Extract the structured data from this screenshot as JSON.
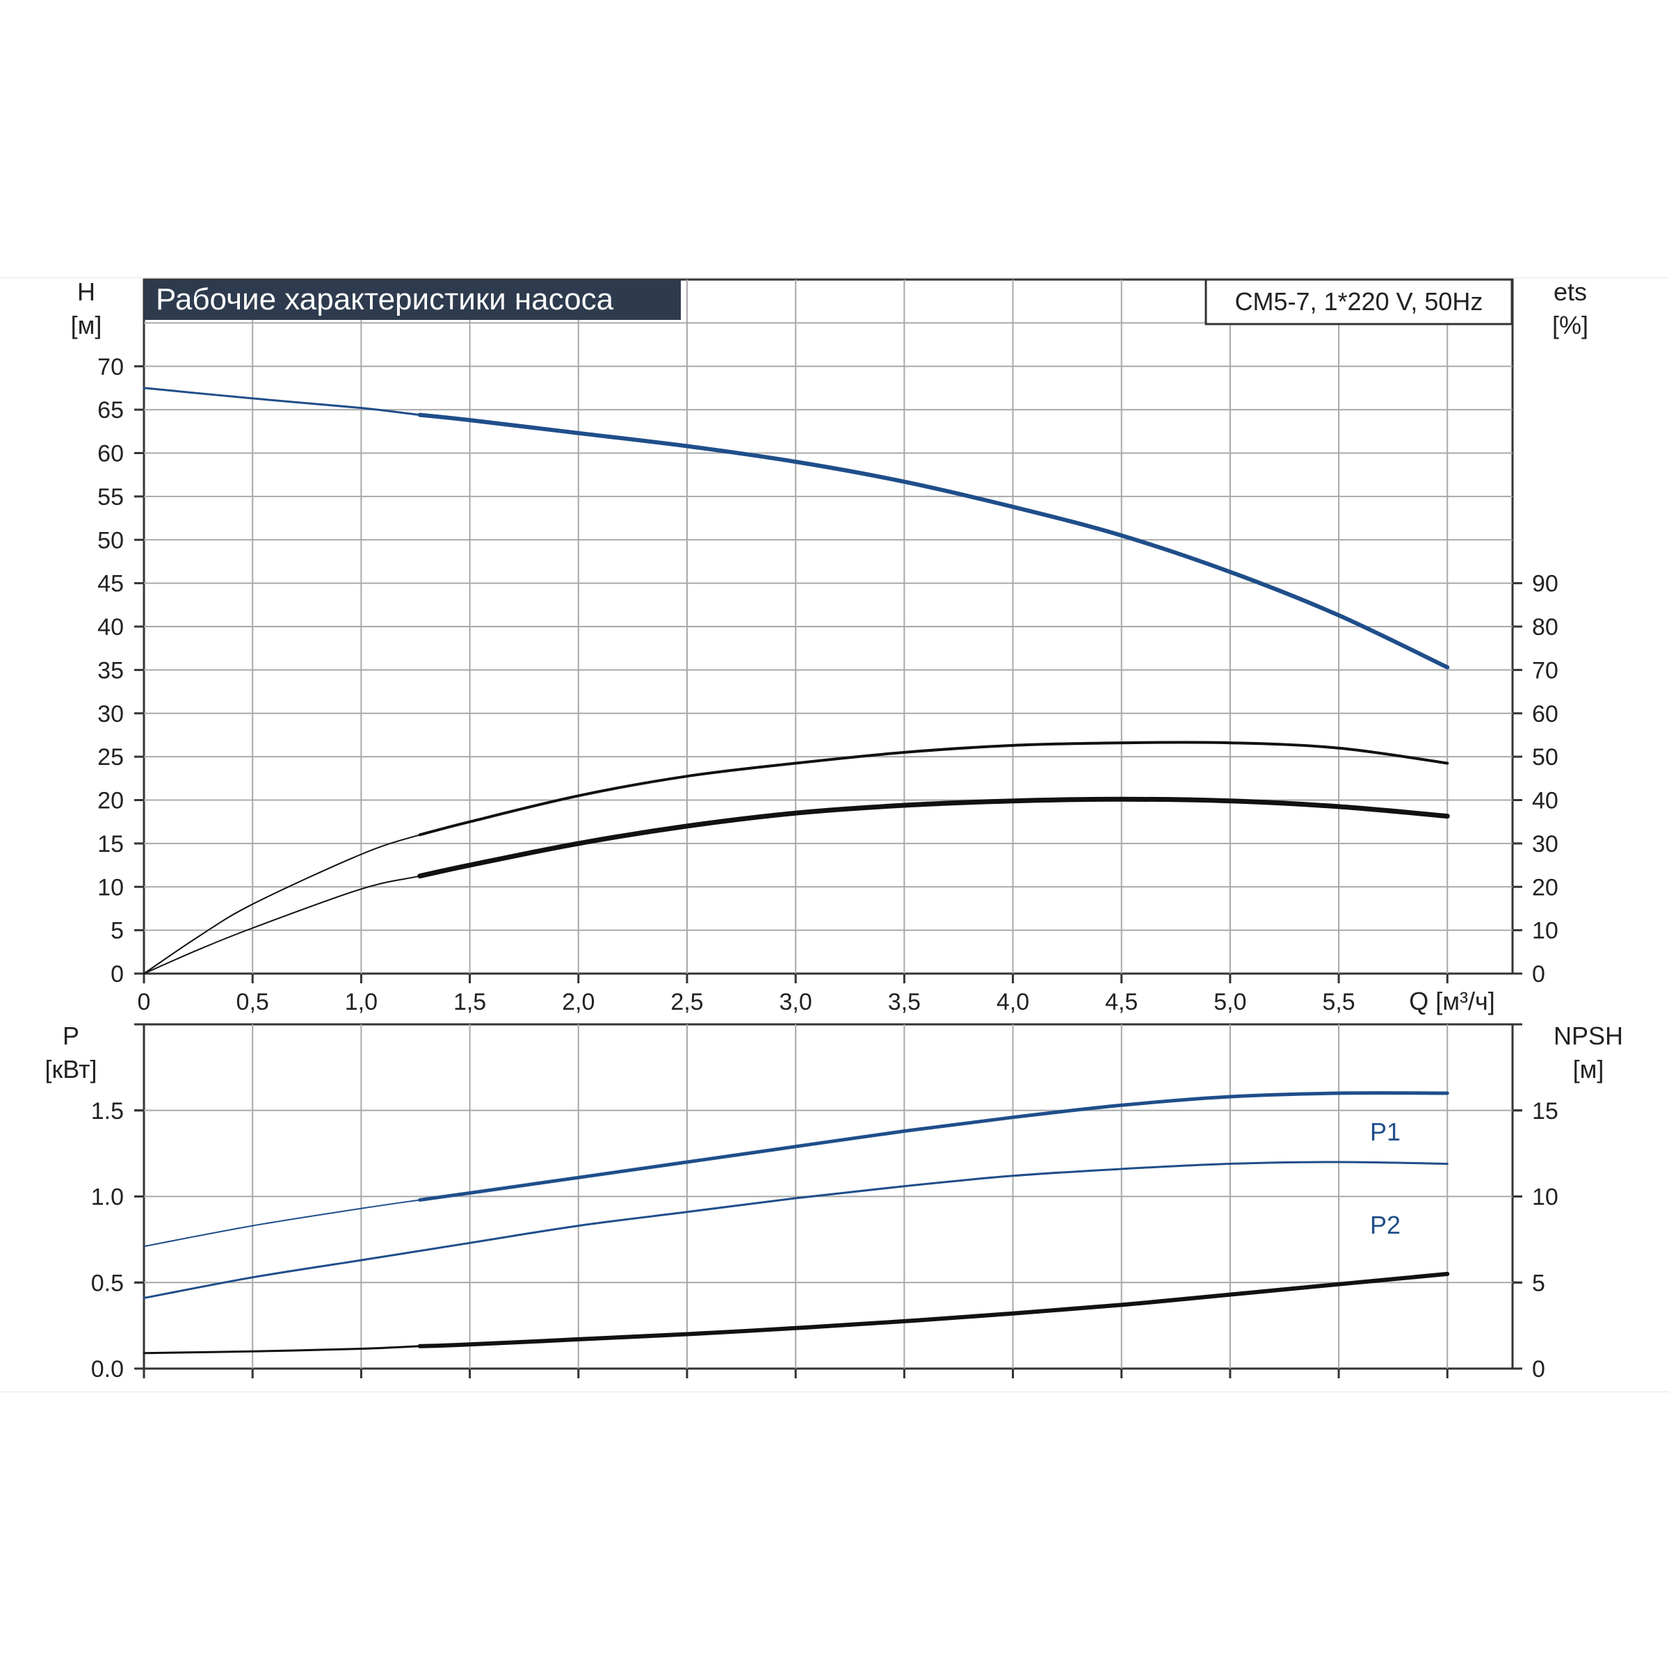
{
  "title": "Рабочие характеристики насоса",
  "model": "CM5-7, 1*220 V, 50Hz",
  "colors": {
    "title_bg": "#2e3b4e",
    "blue": "#1f4e8a",
    "black": "#111111",
    "grid": "#a8a8a8"
  },
  "chart_data": [
    {
      "type": "line",
      "name": "head-efficiency",
      "y_label": "H",
      "y_unit": "[м]",
      "y2_label": "ets",
      "y2_unit": "[%]",
      "x_label": "Q [м³/ч]",
      "x_ticks": [
        "0",
        "0,5",
        "1,0",
        "1,5",
        "2,0",
        "2,5",
        "3,0",
        "3,5",
        "4,0",
        "4,5",
        "5,0",
        "5,5"
      ],
      "x_tick_values": [
        0,
        0.5,
        1.0,
        1.5,
        2.0,
        2.5,
        3.0,
        3.5,
        4.0,
        4.5,
        5.0,
        5.5
      ],
      "xlim": [
        0,
        6.3
      ],
      "y_ticks": [
        "0",
        "5",
        "10",
        "15",
        "20",
        "25",
        "30",
        "35",
        "40",
        "45",
        "50",
        "55",
        "60",
        "65",
        "70"
      ],
      "y_tick_values": [
        0,
        5,
        10,
        15,
        20,
        25,
        30,
        35,
        40,
        45,
        50,
        55,
        60,
        65,
        70
      ],
      "ylim": [
        0,
        80
      ],
      "y2_ticks": [
        "0",
        "10",
        "20",
        "30",
        "40",
        "50",
        "60",
        "70",
        "80",
        "90"
      ],
      "y2_tick_values": [
        0,
        10,
        20,
        30,
        40,
        50,
        60,
        70,
        80,
        90
      ],
      "y2lim": [
        0,
        160
      ],
      "grid": true,
      "series": [
        {
          "id": "head",
          "axis": "y",
          "color": "#1f4e8a",
          "x": [
            0,
            0.5,
            1.0,
            1.27,
            1.5,
            2.0,
            2.5,
            3.0,
            3.5,
            4.0,
            4.5,
            5.0,
            5.5,
            6.0
          ],
          "y": [
            67.5,
            66.3,
            65.2,
            64.4,
            63.8,
            62.3,
            60.8,
            59.0,
            56.7,
            53.8,
            50.5,
            46.3,
            41.3,
            35.3
          ],
          "operating_from": 1.27
        },
        {
          "id": "efficiency-thin",
          "axis": "y2",
          "color": "#111111",
          "x": [
            0,
            0.25,
            0.5,
            1.0,
            1.27,
            1.5,
            2.0,
            2.5,
            3.0,
            3.5,
            4.0,
            4.5,
            5.0,
            5.5,
            6.0
          ],
          "y": [
            0,
            8.5,
            16,
            27.5,
            32,
            35,
            41,
            45.5,
            48.5,
            51,
            52.6,
            53.2,
            53.2,
            52,
            48.5
          ],
          "operating_from": 1.27
        },
        {
          "id": "efficiency-thick",
          "axis": "y2",
          "color": "#111111",
          "x": [
            0,
            0.25,
            0.5,
            1.0,
            1.27,
            1.5,
            2.0,
            2.5,
            3.0,
            3.5,
            4.0,
            4.5,
            5.0,
            5.5,
            6.0
          ],
          "y": [
            0,
            5.5,
            10.5,
            19.5,
            22.5,
            25,
            30,
            34,
            37,
            38.8,
            39.8,
            40.2,
            39.8,
            38.5,
            36.3
          ],
          "operating_from": 1.27
        }
      ]
    },
    {
      "type": "line",
      "name": "power-npsh",
      "y_label": "P",
      "y_unit": "[кВт]",
      "y2_label": "NPSH",
      "y2_unit": "[м]",
      "xlim": [
        0,
        6.3
      ],
      "y_ticks": [
        "0.0",
        "0.5",
        "1.0",
        "1.5"
      ],
      "y_tick_values": [
        0,
        0.5,
        1.0,
        1.5
      ],
      "ylim": [
        0,
        2.0
      ],
      "y2_ticks": [
        "0",
        "5",
        "10",
        "15"
      ],
      "y2_tick_values": [
        0,
        5,
        10,
        15
      ],
      "y2lim": [
        0,
        20
      ],
      "grid": true,
      "series": [
        {
          "id": "P1",
          "name": "P1",
          "axis": "y",
          "color": "#1f4e8a",
          "x": [
            0,
            0.5,
            1.0,
            1.27,
            1.5,
            2.0,
            2.5,
            3.0,
            3.5,
            4.0,
            4.5,
            5.0,
            5.5,
            6.0
          ],
          "y": [
            0.71,
            0.83,
            0.93,
            0.98,
            1.02,
            1.11,
            1.2,
            1.29,
            1.38,
            1.46,
            1.53,
            1.58,
            1.6,
            1.6
          ],
          "operating_from": 1.27
        },
        {
          "id": "P2",
          "name": "P2",
          "axis": "y",
          "color": "#1f4e8a",
          "x": [
            0,
            0.5,
            1.0,
            1.5,
            2.0,
            2.5,
            3.0,
            3.5,
            4.0,
            4.5,
            5.0,
            5.5,
            6.0
          ],
          "y": [
            0.41,
            0.53,
            0.63,
            0.73,
            0.83,
            0.91,
            0.99,
            1.06,
            1.12,
            1.16,
            1.19,
            1.2,
            1.19
          ],
          "operating_from": 1.27
        },
        {
          "id": "NPSH",
          "axis": "y2",
          "color": "#111111",
          "x": [
            0,
            0.5,
            1.0,
            1.27,
            1.5,
            2.0,
            2.5,
            3.0,
            3.5,
            4.0,
            4.5,
            5.0,
            5.5,
            6.0
          ],
          "y": [
            0.9,
            1.0,
            1.15,
            1.3,
            1.4,
            1.7,
            2.0,
            2.35,
            2.75,
            3.2,
            3.7,
            4.3,
            4.9,
            5.5
          ],
          "operating_from": 1.27
        }
      ]
    }
  ]
}
